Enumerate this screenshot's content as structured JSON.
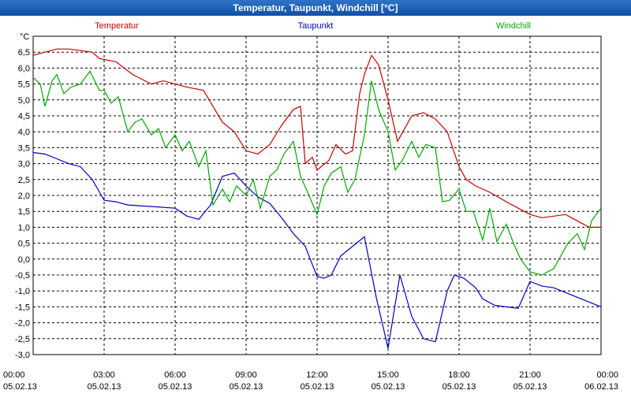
{
  "title": "Temperatur, Taupunkt, Windchill [°C]",
  "chart_data": {
    "type": "line",
    "unit": "°C",
    "ylim": [
      -3.0,
      7.0
    ],
    "yticks": [
      "6,5",
      "6,0",
      "5,5",
      "5,0",
      "4,5",
      "4,0",
      "3,5",
      "3,0",
      "2,5",
      "2,0",
      "1,5",
      "1,0",
      "0,5",
      "0,0",
      "-0,5",
      "-1,0",
      "-1,5",
      "-2,0",
      "-2,5",
      "-3,0"
    ],
    "xlim": [
      0,
      24
    ],
    "xticks": [
      {
        "time": "00:00",
        "date": "05.02.13"
      },
      {
        "time": "03:00",
        "date": "05.02.13"
      },
      {
        "time": "06:00",
        "date": "05.02.13"
      },
      {
        "time": "09:00",
        "date": "05.02.13"
      },
      {
        "time": "12:00",
        "date": "05.02.13"
      },
      {
        "time": "15:00",
        "date": "05.02.13"
      },
      {
        "time": "18:00",
        "date": "05.02.13"
      },
      {
        "time": "21:00",
        "date": "05.02.13"
      },
      {
        "time": "00:00",
        "date": "06.02.13"
      }
    ],
    "grid": true,
    "legend_position": "top",
    "series": [
      {
        "name": "Temperatur",
        "color": "#cc0000",
        "x": [
          0,
          1.0,
          1.5,
          2.5,
          2.8,
          3.5,
          4.2,
          5.0,
          5.5,
          6.0,
          6.5,
          7.2,
          7.6,
          8.0,
          8.5,
          9.0,
          9.5,
          10.0,
          10.5,
          11.0,
          11.3,
          11.5,
          11.8,
          12.0,
          12.5,
          12.8,
          13.2,
          13.5,
          13.8,
          14.0,
          14.3,
          14.6,
          15.0,
          15.4,
          15.7,
          16.0,
          16.5,
          17.0,
          17.5,
          18.0,
          18.3,
          18.7,
          19.3,
          20.0,
          20.5,
          21.0,
          21.5,
          22.0,
          22.5,
          23.0,
          23.5,
          24.0
        ],
        "y": [
          6.4,
          6.6,
          6.6,
          6.5,
          6.3,
          6.2,
          5.8,
          5.5,
          5.6,
          5.5,
          5.4,
          5.3,
          4.8,
          4.3,
          4.0,
          3.4,
          3.3,
          3.6,
          4.2,
          4.7,
          4.8,
          3.0,
          3.2,
          2.8,
          3.1,
          3.6,
          3.3,
          3.4,
          5.2,
          5.8,
          6.4,
          6.1,
          5.0,
          3.7,
          4.1,
          4.5,
          4.6,
          4.4,
          4.0,
          2.9,
          2.5,
          2.3,
          2.1,
          1.8,
          1.6,
          1.4,
          1.3,
          1.35,
          1.4,
          1.2,
          1.0,
          1.0
        ]
      },
      {
        "name": "Taupunkt",
        "color": "#0000cc",
        "x": [
          0,
          0.5,
          1.0,
          1.5,
          2.0,
          2.5,
          3.0,
          3.5,
          4.0,
          5.0,
          6.0,
          6.5,
          7.0,
          7.5,
          8.0,
          8.5,
          9.0,
          9.5,
          10.0,
          10.5,
          11.0,
          11.5,
          12.0,
          12.3,
          12.6,
          13.0,
          13.5,
          14.0,
          14.5,
          15.0,
          15.5,
          16.0,
          16.5,
          17.0,
          17.5,
          17.8,
          18.2,
          18.7,
          19.0,
          19.5,
          20.0,
          20.5,
          21.0,
          21.5,
          22.0,
          23.0,
          24.0
        ],
        "y": [
          3.35,
          3.3,
          3.15,
          3.0,
          2.9,
          2.5,
          1.85,
          1.8,
          1.7,
          1.65,
          1.6,
          1.35,
          1.25,
          1.7,
          2.6,
          2.7,
          2.3,
          1.95,
          1.75,
          1.3,
          0.8,
          0.4,
          -0.55,
          -0.6,
          -0.5,
          0.1,
          0.4,
          0.7,
          -1.2,
          -2.8,
          -0.5,
          -1.8,
          -2.5,
          -2.6,
          -1.0,
          -0.5,
          -0.6,
          -0.9,
          -1.25,
          -1.45,
          -1.5,
          -1.55,
          -0.7,
          -0.85,
          -0.9,
          -1.2,
          -1.5
        ]
      },
      {
        "name": "Windchill",
        "color": "#00aa00",
        "x": [
          0,
          0.3,
          0.5,
          0.8,
          1.0,
          1.3,
          1.6,
          2.0,
          2.4,
          2.8,
          3.0,
          3.3,
          3.6,
          4.0,
          4.3,
          4.6,
          5.0,
          5.3,
          5.6,
          6.0,
          6.3,
          6.6,
          7.0,
          7.3,
          7.6,
          8.0,
          8.3,
          8.6,
          9.0,
          9.3,
          9.6,
          10.0,
          10.3,
          10.6,
          11.0,
          11.3,
          11.6,
          12.0,
          12.3,
          12.6,
          13.0,
          13.3,
          13.6,
          14.0,
          14.3,
          14.6,
          15.0,
          15.3,
          15.6,
          16.0,
          16.3,
          16.6,
          17.0,
          17.3,
          17.6,
          18.0,
          18.3,
          18.6,
          19.0,
          19.3,
          19.6,
          20.0,
          20.3,
          20.6,
          21.0,
          21.5,
          22.0,
          22.3,
          22.6,
          23.0,
          23.3,
          23.6,
          24.0
        ],
        "y": [
          5.7,
          5.5,
          4.8,
          5.6,
          5.8,
          5.2,
          5.4,
          5.5,
          5.9,
          5.3,
          5.3,
          4.9,
          5.1,
          4.0,
          4.3,
          4.4,
          3.9,
          4.1,
          3.5,
          3.9,
          3.4,
          3.7,
          2.9,
          3.4,
          1.7,
          2.2,
          1.8,
          2.3,
          2.0,
          2.5,
          1.6,
          2.6,
          2.8,
          3.3,
          3.7,
          2.6,
          2.1,
          1.4,
          2.3,
          2.7,
          2.9,
          2.1,
          2.5,
          3.9,
          5.6,
          4.7,
          4.0,
          2.8,
          3.1,
          3.7,
          3.2,
          3.6,
          3.5,
          1.8,
          1.85,
          2.2,
          1.5,
          1.5,
          0.6,
          1.6,
          0.55,
          1.1,
          0.5,
          0.0,
          -0.4,
          -0.5,
          -0.3,
          0.1,
          0.5,
          0.8,
          0.3,
          1.2,
          1.6
        ]
      }
    ]
  }
}
